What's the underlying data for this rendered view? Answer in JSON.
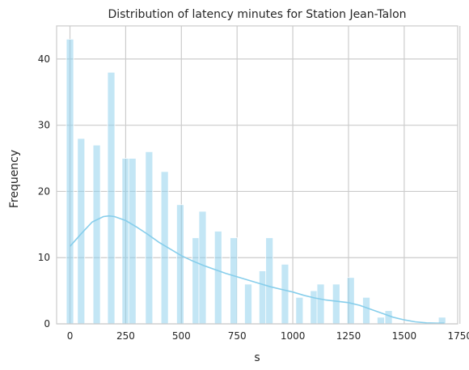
{
  "chart_data": {
    "type": "bar",
    "title": "Distribution of latency minutes for Station Jean-Talon",
    "xlabel": "s",
    "ylabel": "Frequency",
    "xlim": [
      -60,
      1740
    ],
    "ylim": [
      0,
      45
    ],
    "x_ticks": [
      0,
      250,
      500,
      750,
      1000,
      1250,
      1500,
      1750
    ],
    "y_ticks": [
      0,
      10,
      20,
      30,
      40
    ],
    "grid": true,
    "colors": {
      "bar": "#87ceeb",
      "kde": "#87ceeb",
      "grid": "#cccccc"
    },
    "bins": [
      {
        "x": 0,
        "value": 43
      },
      {
        "x": 50,
        "value": 28
      },
      {
        "x": 120,
        "value": 27
      },
      {
        "x": 185,
        "value": 38
      },
      {
        "x": 250,
        "value": 25
      },
      {
        "x": 280,
        "value": 25
      },
      {
        "x": 355,
        "value": 26
      },
      {
        "x": 425,
        "value": 23
      },
      {
        "x": 495,
        "value": 18
      },
      {
        "x": 565,
        "value": 13
      },
      {
        "x": 595,
        "value": 17
      },
      {
        "x": 665,
        "value": 14
      },
      {
        "x": 735,
        "value": 13
      },
      {
        "x": 800,
        "value": 6
      },
      {
        "x": 865,
        "value": 8
      },
      {
        "x": 895,
        "value": 13
      },
      {
        "x": 965,
        "value": 9
      },
      {
        "x": 1030,
        "value": 4
      },
      {
        "x": 1095,
        "value": 5
      },
      {
        "x": 1125,
        "value": 6
      },
      {
        "x": 1195,
        "value": 6
      },
      {
        "x": 1260,
        "value": 7
      },
      {
        "x": 1330,
        "value": 4
      },
      {
        "x": 1395,
        "value": 1
      },
      {
        "x": 1430,
        "value": 2
      },
      {
        "x": 1670,
        "value": 1
      }
    ],
    "kde": {
      "x": [
        0,
        50,
        100,
        150,
        175,
        200,
        250,
        300,
        350,
        400,
        450,
        500,
        550,
        600,
        650,
        700,
        750,
        800,
        850,
        900,
        950,
        1000,
        1050,
        1100,
        1150,
        1200,
        1250,
        1300,
        1350,
        1400,
        1450,
        1500,
        1550,
        1600,
        1650,
        1680
      ],
      "y": [
        11.7,
        13.6,
        15.4,
        16.2,
        16.3,
        16.2,
        15.6,
        14.6,
        13.5,
        12.3,
        11.3,
        10.3,
        9.5,
        8.8,
        8.2,
        7.6,
        7.1,
        6.6,
        6.1,
        5.6,
        5.2,
        4.8,
        4.3,
        3.9,
        3.6,
        3.4,
        3.2,
        2.8,
        2.2,
        1.6,
        1.0,
        0.6,
        0.3,
        0.15,
        0.1,
        0.1
      ]
    }
  }
}
